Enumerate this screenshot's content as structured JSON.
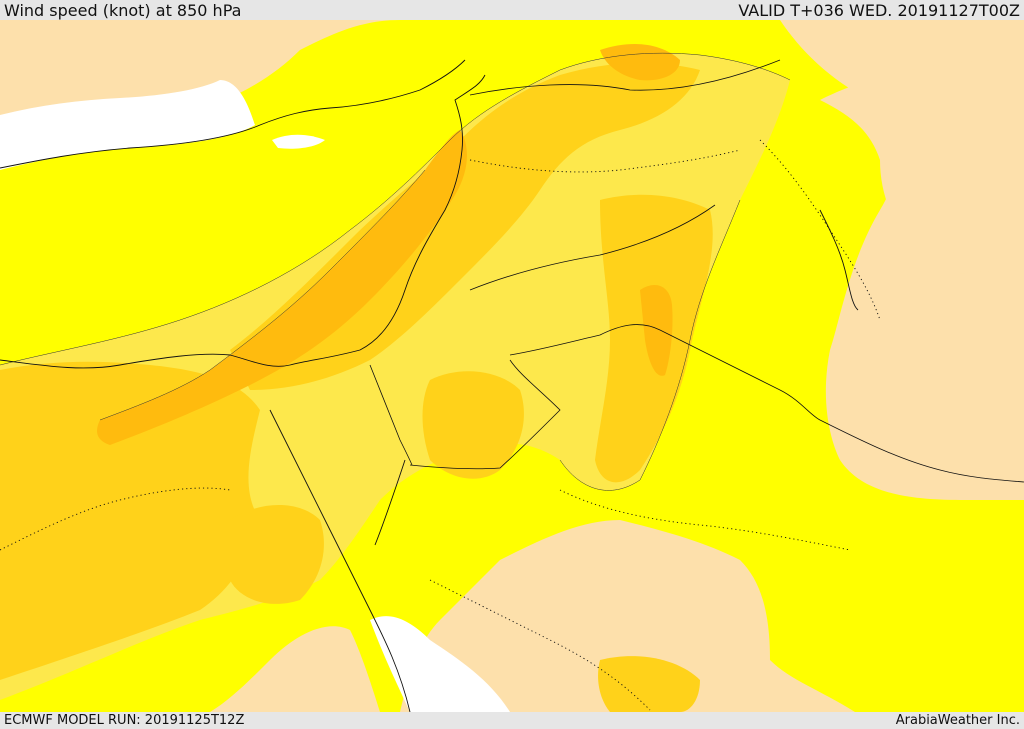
{
  "header": {
    "title": "Wind speed (knot) at 850 hPa",
    "valid_time": "VALID T+036 WED. 20191127T00Z"
  },
  "footer": {
    "model_run": "ECMWF MODEL RUN: 20191125T12Z",
    "credit": "ArabiaWeather Inc."
  },
  "map": {
    "field": "wind-speed-850hPa",
    "color_scale": [
      "#fde0ab",
      "#ffff00",
      "#fde84c",
      "#ffd21a",
      "#ffbb0e"
    ],
    "sea_color": "#ffffff"
  }
}
